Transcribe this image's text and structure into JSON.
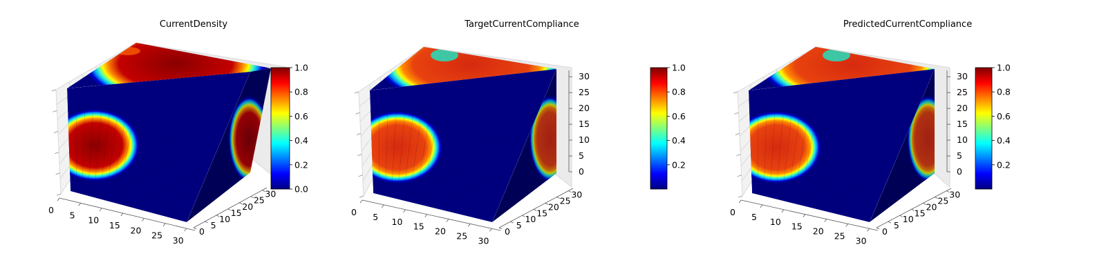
{
  "chart_data": [
    {
      "type": "3d-voxel",
      "title": "CurrentDensity",
      "colormap": "jet",
      "axes": {
        "x": {
          "ticks": [
            0,
            5,
            10,
            15,
            20,
            25,
            30
          ],
          "range": [
            0,
            32
          ]
        },
        "y": {
          "ticks": [
            0,
            5,
            10,
            15,
            20,
            25,
            30
          ],
          "range": [
            0,
            32
          ]
        },
        "z": {
          "ticks": [],
          "range": [
            0,
            32
          ]
        }
      },
      "colorbar": {
        "min": 0.0,
        "max": 1.0,
        "ticks": [
          "0.0",
          "0.2",
          "0.4",
          "0.6",
          "0.8",
          "1.0"
        ],
        "values": [
          0.0,
          0.2,
          0.4,
          0.6,
          0.8,
          1.0
        ]
      },
      "blob_intensity": 1.0
    },
    {
      "type": "3d-voxel",
      "title": "TargetCurrentCompliance",
      "colormap": "jet",
      "axes": {
        "x": {
          "ticks": [
            0,
            5,
            10,
            15,
            20,
            25,
            30
          ],
          "range": [
            0,
            32
          ]
        },
        "y": {
          "ticks": [
            0,
            5,
            10,
            15,
            20,
            25,
            30
          ],
          "range": [
            0,
            32
          ]
        },
        "z": {
          "ticks": [
            0,
            5,
            10,
            15,
            20,
            25,
            30
          ],
          "range": [
            0,
            32
          ]
        }
      },
      "colorbar": {
        "min": 0.0,
        "max": 1.0,
        "ticks": [
          "0.2",
          "0.4",
          "0.6",
          "0.8",
          "1.0"
        ],
        "values": [
          0.2,
          0.4,
          0.6,
          0.8,
          1.0
        ]
      },
      "blob_intensity": 0.87
    },
    {
      "type": "3d-voxel",
      "title": "PredictedCurrentCompliance",
      "colormap": "jet",
      "axes": {
        "x": {
          "ticks": [
            0,
            5,
            10,
            15,
            20,
            25,
            30
          ],
          "range": [
            0,
            32
          ]
        },
        "y": {
          "ticks": [
            0,
            5,
            10,
            15,
            20,
            25,
            30
          ],
          "range": [
            0,
            32
          ]
        },
        "z": {
          "ticks": [
            0,
            5,
            10,
            15,
            20,
            25,
            30
          ],
          "range": [
            0,
            32
          ]
        }
      },
      "colorbar": {
        "min": 0.0,
        "max": 1.0,
        "ticks": [
          "0.2",
          "0.4",
          "0.6",
          "0.8",
          "1.0"
        ],
        "values": [
          0.2,
          0.4,
          0.6,
          0.8,
          1.0
        ]
      },
      "blob_intensity": 0.87
    }
  ]
}
